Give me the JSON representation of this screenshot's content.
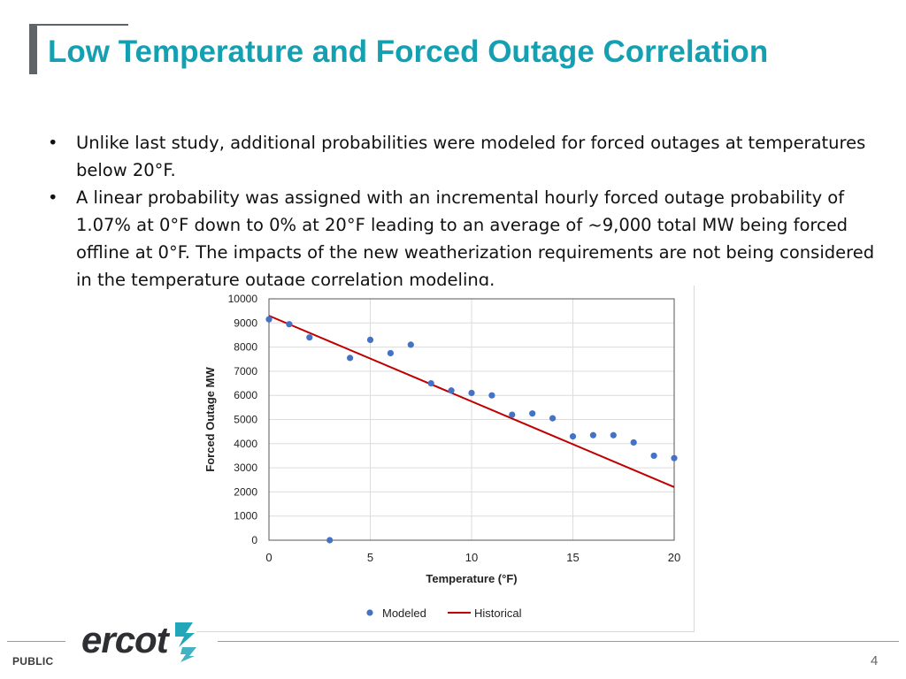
{
  "slide": {
    "title": "Low Temperature and Forced Outage Correlation",
    "bullets": [
      "Unlike last study, additional probabilities were modeled for forced outages at temperatures below 20°F.",
      "A linear probability was assigned with an incremental hourly forced outage probability of 1.07% at 0°F down to 0% at 20°F leading to an average of ~9,000 total MW being forced offline at 0°F. The impacts of the new weatherization requirements are not being considered in the temperature outage correlation modeling."
    ],
    "bullet_char": "•",
    "footer_label": "PUBLIC",
    "logo_text": "ercot",
    "page_number": "4"
  },
  "chart_data": {
    "type": "scatter",
    "title": "",
    "xlabel": "Temperature (°F)",
    "ylabel": "Forced Outage MW",
    "xlim": [
      0,
      20
    ],
    "ylim": [
      0,
      10000
    ],
    "xticks": [
      0,
      5,
      10,
      15,
      20
    ],
    "yticks": [
      0,
      1000,
      2000,
      3000,
      4000,
      5000,
      6000,
      7000,
      8000,
      9000,
      10000
    ],
    "grid": true,
    "legend_position": "bottom",
    "series": [
      {
        "name": "Modeled",
        "kind": "scatter",
        "color": "#4472c4",
        "x": [
          0,
          1,
          2,
          3,
          4,
          5,
          6,
          7,
          8,
          9,
          10,
          11,
          12,
          13,
          14,
          15,
          16,
          17,
          18,
          19,
          20
        ],
        "y": [
          9150,
          8950,
          8400,
          0,
          7550,
          8300,
          7750,
          8100,
          6500,
          6200,
          6100,
          6000,
          5200,
          5250,
          5050,
          4300,
          4350,
          4350,
          4050,
          3500,
          3400
        ]
      },
      {
        "name": "Historical",
        "kind": "line",
        "color": "#c00000",
        "x": [
          0,
          20
        ],
        "y": [
          9300,
          2200
        ]
      }
    ]
  }
}
